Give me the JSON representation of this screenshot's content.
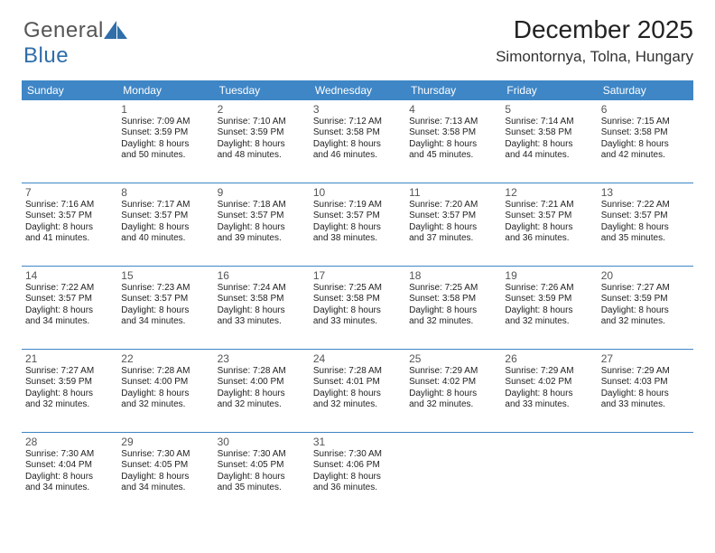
{
  "logo": {
    "text_general": "General",
    "text_blue": "Blue"
  },
  "title": {
    "month": "December 2025",
    "location": "Simontornya, Tolna, Hungary"
  },
  "colors": {
    "header_blue": "#3e86c6",
    "logo_blue": "#2f6ea8",
    "text": "#333333",
    "background": "#ffffff"
  },
  "weekdays": [
    "Sunday",
    "Monday",
    "Tuesday",
    "Wednesday",
    "Thursday",
    "Friday",
    "Saturday"
  ],
  "cells": [
    {
      "day": "",
      "sunrise": "",
      "sunset": "",
      "daylight1": "",
      "daylight2": ""
    },
    {
      "day": "1",
      "sunrise": "Sunrise: 7:09 AM",
      "sunset": "Sunset: 3:59 PM",
      "daylight1": "Daylight: 8 hours",
      "daylight2": "and 50 minutes."
    },
    {
      "day": "2",
      "sunrise": "Sunrise: 7:10 AM",
      "sunset": "Sunset: 3:59 PM",
      "daylight1": "Daylight: 8 hours",
      "daylight2": "and 48 minutes."
    },
    {
      "day": "3",
      "sunrise": "Sunrise: 7:12 AM",
      "sunset": "Sunset: 3:58 PM",
      "daylight1": "Daylight: 8 hours",
      "daylight2": "and 46 minutes."
    },
    {
      "day": "4",
      "sunrise": "Sunrise: 7:13 AM",
      "sunset": "Sunset: 3:58 PM",
      "daylight1": "Daylight: 8 hours",
      "daylight2": "and 45 minutes."
    },
    {
      "day": "5",
      "sunrise": "Sunrise: 7:14 AM",
      "sunset": "Sunset: 3:58 PM",
      "daylight1": "Daylight: 8 hours",
      "daylight2": "and 44 minutes."
    },
    {
      "day": "6",
      "sunrise": "Sunrise: 7:15 AM",
      "sunset": "Sunset: 3:58 PM",
      "daylight1": "Daylight: 8 hours",
      "daylight2": "and 42 minutes."
    },
    {
      "day": "7",
      "sunrise": "Sunrise: 7:16 AM",
      "sunset": "Sunset: 3:57 PM",
      "daylight1": "Daylight: 8 hours",
      "daylight2": "and 41 minutes."
    },
    {
      "day": "8",
      "sunrise": "Sunrise: 7:17 AM",
      "sunset": "Sunset: 3:57 PM",
      "daylight1": "Daylight: 8 hours",
      "daylight2": "and 40 minutes."
    },
    {
      "day": "9",
      "sunrise": "Sunrise: 7:18 AM",
      "sunset": "Sunset: 3:57 PM",
      "daylight1": "Daylight: 8 hours",
      "daylight2": "and 39 minutes."
    },
    {
      "day": "10",
      "sunrise": "Sunrise: 7:19 AM",
      "sunset": "Sunset: 3:57 PM",
      "daylight1": "Daylight: 8 hours",
      "daylight2": "and 38 minutes."
    },
    {
      "day": "11",
      "sunrise": "Sunrise: 7:20 AM",
      "sunset": "Sunset: 3:57 PM",
      "daylight1": "Daylight: 8 hours",
      "daylight2": "and 37 minutes."
    },
    {
      "day": "12",
      "sunrise": "Sunrise: 7:21 AM",
      "sunset": "Sunset: 3:57 PM",
      "daylight1": "Daylight: 8 hours",
      "daylight2": "and 36 minutes."
    },
    {
      "day": "13",
      "sunrise": "Sunrise: 7:22 AM",
      "sunset": "Sunset: 3:57 PM",
      "daylight1": "Daylight: 8 hours",
      "daylight2": "and 35 minutes."
    },
    {
      "day": "14",
      "sunrise": "Sunrise: 7:22 AM",
      "sunset": "Sunset: 3:57 PM",
      "daylight1": "Daylight: 8 hours",
      "daylight2": "and 34 minutes."
    },
    {
      "day": "15",
      "sunrise": "Sunrise: 7:23 AM",
      "sunset": "Sunset: 3:57 PM",
      "daylight1": "Daylight: 8 hours",
      "daylight2": "and 34 minutes."
    },
    {
      "day": "16",
      "sunrise": "Sunrise: 7:24 AM",
      "sunset": "Sunset: 3:58 PM",
      "daylight1": "Daylight: 8 hours",
      "daylight2": "and 33 minutes."
    },
    {
      "day": "17",
      "sunrise": "Sunrise: 7:25 AM",
      "sunset": "Sunset: 3:58 PM",
      "daylight1": "Daylight: 8 hours",
      "daylight2": "and 33 minutes."
    },
    {
      "day": "18",
      "sunrise": "Sunrise: 7:25 AM",
      "sunset": "Sunset: 3:58 PM",
      "daylight1": "Daylight: 8 hours",
      "daylight2": "and 32 minutes."
    },
    {
      "day": "19",
      "sunrise": "Sunrise: 7:26 AM",
      "sunset": "Sunset: 3:59 PM",
      "daylight1": "Daylight: 8 hours",
      "daylight2": "and 32 minutes."
    },
    {
      "day": "20",
      "sunrise": "Sunrise: 7:27 AM",
      "sunset": "Sunset: 3:59 PM",
      "daylight1": "Daylight: 8 hours",
      "daylight2": "and 32 minutes."
    },
    {
      "day": "21",
      "sunrise": "Sunrise: 7:27 AM",
      "sunset": "Sunset: 3:59 PM",
      "daylight1": "Daylight: 8 hours",
      "daylight2": "and 32 minutes."
    },
    {
      "day": "22",
      "sunrise": "Sunrise: 7:28 AM",
      "sunset": "Sunset: 4:00 PM",
      "daylight1": "Daylight: 8 hours",
      "daylight2": "and 32 minutes."
    },
    {
      "day": "23",
      "sunrise": "Sunrise: 7:28 AM",
      "sunset": "Sunset: 4:00 PM",
      "daylight1": "Daylight: 8 hours",
      "daylight2": "and 32 minutes."
    },
    {
      "day": "24",
      "sunrise": "Sunrise: 7:28 AM",
      "sunset": "Sunset: 4:01 PM",
      "daylight1": "Daylight: 8 hours",
      "daylight2": "and 32 minutes."
    },
    {
      "day": "25",
      "sunrise": "Sunrise: 7:29 AM",
      "sunset": "Sunset: 4:02 PM",
      "daylight1": "Daylight: 8 hours",
      "daylight2": "and 32 minutes."
    },
    {
      "day": "26",
      "sunrise": "Sunrise: 7:29 AM",
      "sunset": "Sunset: 4:02 PM",
      "daylight1": "Daylight: 8 hours",
      "daylight2": "and 33 minutes."
    },
    {
      "day": "27",
      "sunrise": "Sunrise: 7:29 AM",
      "sunset": "Sunset: 4:03 PM",
      "daylight1": "Daylight: 8 hours",
      "daylight2": "and 33 minutes."
    },
    {
      "day": "28",
      "sunrise": "Sunrise: 7:30 AM",
      "sunset": "Sunset: 4:04 PM",
      "daylight1": "Daylight: 8 hours",
      "daylight2": "and 34 minutes."
    },
    {
      "day": "29",
      "sunrise": "Sunrise: 7:30 AM",
      "sunset": "Sunset: 4:05 PM",
      "daylight1": "Daylight: 8 hours",
      "daylight2": "and 34 minutes."
    },
    {
      "day": "30",
      "sunrise": "Sunrise: 7:30 AM",
      "sunset": "Sunset: 4:05 PM",
      "daylight1": "Daylight: 8 hours",
      "daylight2": "and 35 minutes."
    },
    {
      "day": "31",
      "sunrise": "Sunrise: 7:30 AM",
      "sunset": "Sunset: 4:06 PM",
      "daylight1": "Daylight: 8 hours",
      "daylight2": "and 36 minutes."
    },
    {
      "day": "",
      "sunrise": "",
      "sunset": "",
      "daylight1": "",
      "daylight2": ""
    },
    {
      "day": "",
      "sunrise": "",
      "sunset": "",
      "daylight1": "",
      "daylight2": ""
    },
    {
      "day": "",
      "sunrise": "",
      "sunset": "",
      "daylight1": "",
      "daylight2": ""
    }
  ]
}
